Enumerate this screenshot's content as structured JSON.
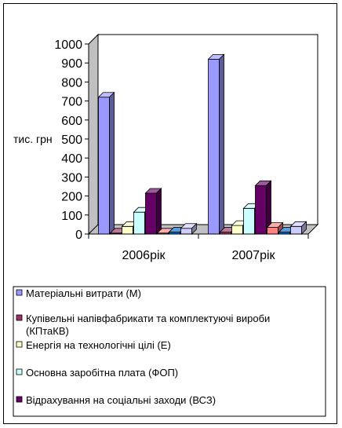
{
  "chart_data": {
    "type": "bar",
    "title": "",
    "ylabel": "тис. грн",
    "xlabel": "",
    "ylim": [
      0,
      1000
    ],
    "yticks": [
      "0",
      "100",
      "200",
      "300",
      "400",
      "500",
      "600",
      "700",
      "800",
      "900",
      "1000"
    ],
    "categories": [
      "2006рік",
      "2007рік"
    ],
    "grid": false,
    "legend_placement": "bottom",
    "series": [
      {
        "name": "Матеріальні витрати (М)",
        "values": [
          720,
          920
        ],
        "color": "#9999ff"
      },
      {
        "name": "Купівельні напівфабрикати та комплектуючі вироби (КПтаКВ)",
        "values": [
          5,
          10
        ],
        "color": "#993366"
      },
      {
        "name": "Енергія на технологічні цілі (Е)",
        "values": [
          40,
          45
        ],
        "color": "#ffffcc"
      },
      {
        "name": "Основна заробітна плата (ФОП)",
        "values": [
          115,
          135
        ],
        "color": "#ccffff"
      },
      {
        "name": "Відрахування на соціальні заходи (ВСЗ)",
        "values": [
          215,
          255
        ],
        "color": "#660066"
      },
      {
        "name": "",
        "values": [
          5,
          35
        ],
        "color": "#ff8080"
      },
      {
        "name": "",
        "values": [
          10,
          10
        ],
        "color": "#0066cc"
      },
      {
        "name": "",
        "values": [
          30,
          40
        ],
        "color": "#ccccff"
      }
    ]
  }
}
